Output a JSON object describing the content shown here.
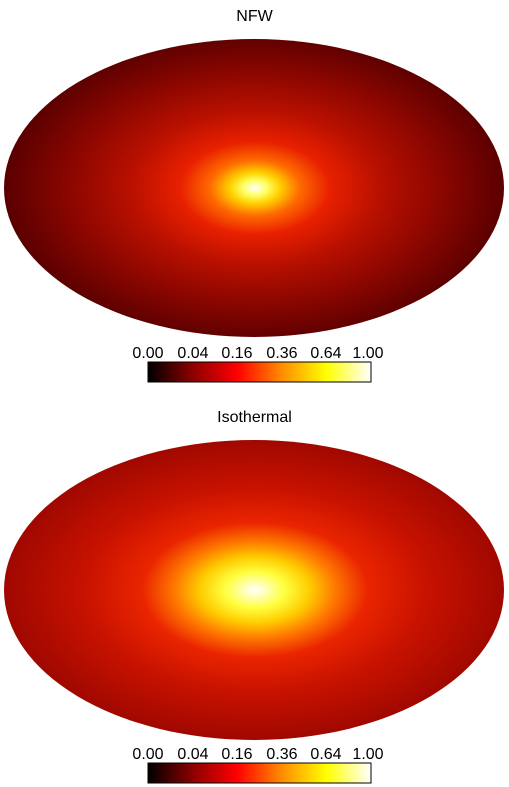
{
  "panels": [
    {
      "title": "NFW",
      "profile": "nfw",
      "colorbar_ticks": [
        "0.00",
        "0.04",
        "0.16",
        "0.36",
        "0.64",
        "1.00"
      ]
    },
    {
      "title": "Isothermal",
      "profile": "isothermal",
      "colorbar_ticks": [
        "0.00",
        "0.04",
        "0.16",
        "0.36",
        "0.64",
        "1.00"
      ]
    }
  ],
  "colormap": "hot",
  "colormap_colors": [
    "#000000",
    "#8b0000",
    "#ff0000",
    "#ff8c00",
    "#ffff00",
    "#ffffff"
  ]
}
